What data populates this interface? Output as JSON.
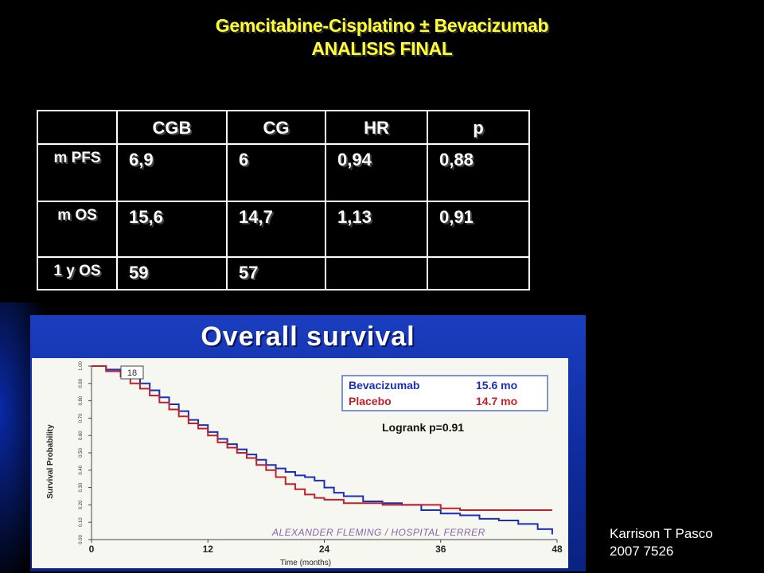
{
  "title": {
    "line1": "Gemcitabine-Cisplatino ± Bevacizumab",
    "line2": "ANALISIS  FINAL"
  },
  "table": {
    "headers": [
      "",
      "CGB",
      "CG",
      "HR",
      "p"
    ],
    "rows": [
      {
        "label": "m  PFS",
        "values": [
          "6,9",
          "6",
          "0,94",
          "0,88"
        ]
      },
      {
        "label": "m OS",
        "values": [
          "15,6",
          "14,7",
          "1,13",
          "0,91"
        ]
      },
      {
        "label": "1 y OS",
        "values": [
          "59",
          "57",
          "",
          ""
        ]
      }
    ]
  },
  "figure": {
    "title": "Overall survival",
    "ylabel": "Survival Probability",
    "xlabel": "Time (months)",
    "corner_label": "18",
    "legend": [
      {
        "name": "Bevacizumab",
        "value": "15.6 mo",
        "color": "#1a2fb8"
      },
      {
        "name": "Placebo",
        "value": "14.7 mo",
        "color": "#c0202a"
      }
    ],
    "logrank": "Logrank p=0.91",
    "watermark": "ALEXANDER FLEMING / HOSPITAL FERRER"
  },
  "chart_data": {
    "type": "line",
    "title": "Overall survival",
    "xlabel": "Time (months)",
    "ylabel": "Survival Probability",
    "xlim": [
      0,
      48
    ],
    "ylim": [
      0,
      1
    ],
    "xticks": [
      "0",
      "12",
      "24",
      "36",
      "48"
    ],
    "yticks": [
      "0.00",
      "0.10",
      "0.20",
      "0.30",
      "0.40",
      "0.50",
      "0.60",
      "0.70",
      "0.80",
      "0.90",
      "1.00"
    ],
    "series": [
      {
        "name": "Bevacizumab",
        "color": "#1a2fb8",
        "x": [
          0,
          1.5,
          3,
          4,
          5,
          6,
          7,
          8,
          9,
          10,
          11,
          12,
          13,
          14,
          15,
          16,
          17,
          18,
          19,
          20,
          21,
          22,
          23,
          24,
          25,
          26,
          28,
          30,
          32,
          34,
          36,
          38,
          40,
          42,
          44,
          46,
          47.5
        ],
        "y": [
          1.0,
          0.98,
          0.96,
          0.93,
          0.9,
          0.86,
          0.82,
          0.78,
          0.74,
          0.69,
          0.66,
          0.62,
          0.58,
          0.55,
          0.52,
          0.49,
          0.46,
          0.43,
          0.41,
          0.39,
          0.37,
          0.36,
          0.34,
          0.3,
          0.27,
          0.25,
          0.22,
          0.21,
          0.2,
          0.17,
          0.15,
          0.14,
          0.12,
          0.11,
          0.09,
          0.06,
          0.03
        ]
      },
      {
        "name": "Placebo",
        "color": "#c0202a",
        "x": [
          0,
          1.5,
          3,
          4,
          5,
          6,
          7,
          8,
          9,
          10,
          11,
          12,
          13,
          14,
          15,
          16,
          17,
          18,
          19,
          20,
          21,
          22,
          23,
          24,
          26,
          28,
          30,
          32,
          34,
          36,
          38,
          40,
          42,
          44,
          46,
          47.5
        ],
        "y": [
          1.0,
          0.97,
          0.94,
          0.9,
          0.87,
          0.83,
          0.79,
          0.75,
          0.71,
          0.67,
          0.64,
          0.6,
          0.56,
          0.53,
          0.5,
          0.47,
          0.43,
          0.4,
          0.36,
          0.32,
          0.29,
          0.26,
          0.24,
          0.23,
          0.21,
          0.21,
          0.2,
          0.2,
          0.2,
          0.18,
          0.17,
          0.17,
          0.17,
          0.17,
          0.17,
          0.17
        ]
      }
    ]
  },
  "credit": {
    "line1": "Karrison T Pasco",
    "line2": "2007 7526"
  }
}
